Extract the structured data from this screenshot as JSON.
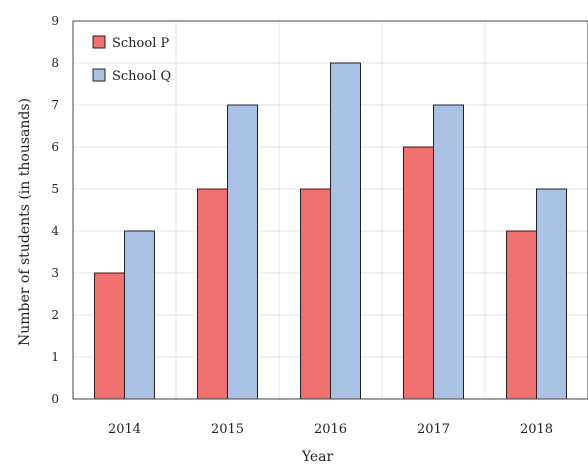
{
  "chart_data": {
    "type": "bar",
    "title": "",
    "xlabel": "Year",
    "ylabel": "Number of students (in thousands)",
    "categories": [
      "2014",
      "2015",
      "2016",
      "2017",
      "2018"
    ],
    "series": [
      {
        "name": "School P",
        "values": [
          3,
          5,
          5,
          6,
          4
        ],
        "color": "#f07070"
      },
      {
        "name": "School Q",
        "values": [
          4,
          7,
          8,
          7,
          5
        ],
        "color": "#a9c2e3"
      }
    ],
    "ylim": [
      0,
      9
    ],
    "yticks": [
      0,
      1,
      2,
      3,
      4,
      5,
      6,
      7,
      8,
      9
    ],
    "grid": true,
    "legend_position": "top-left"
  }
}
